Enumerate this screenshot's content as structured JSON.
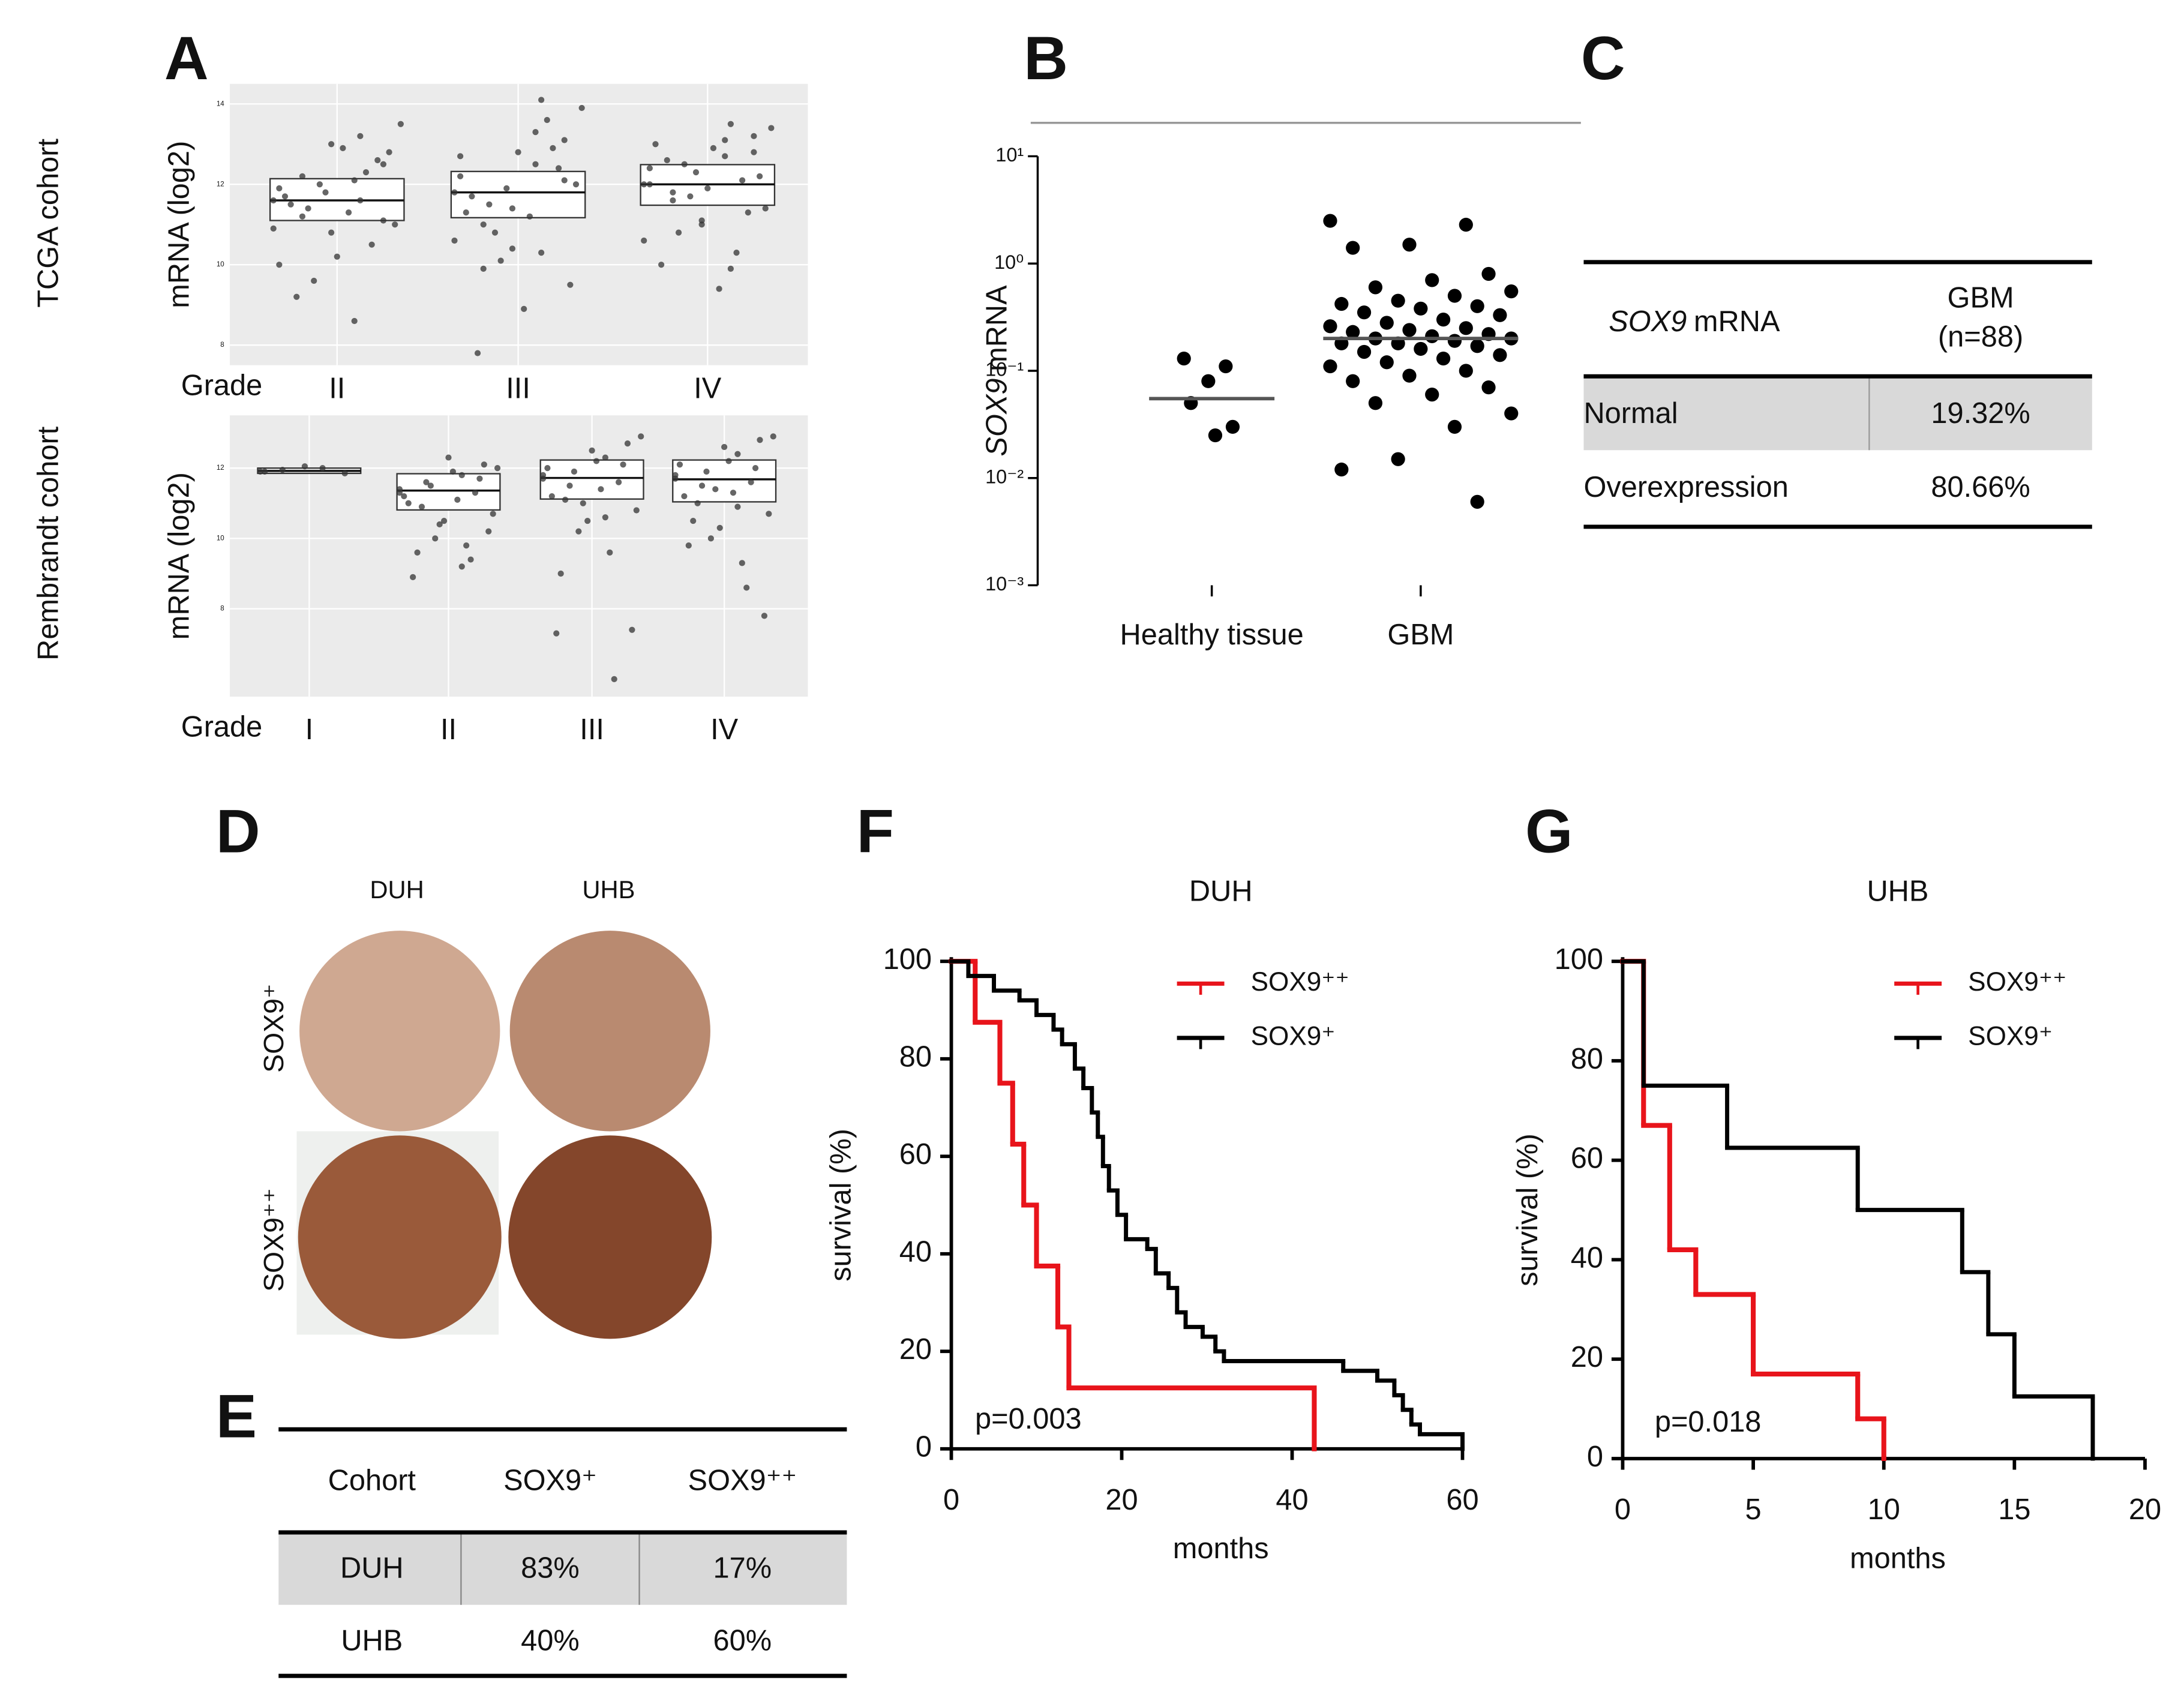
{
  "panel_labels": [
    "A",
    "B",
    "C",
    "D",
    "E",
    "F",
    "G"
  ],
  "chart_data": [
    {
      "type": "box",
      "side_label": "TCGA cohort",
      "y_label": "mRNA (log2)",
      "x_label": "Grade",
      "categories": [
        "II",
        "III",
        "IV"
      ],
      "ylim": [
        7.5,
        14.5
      ],
      "yticks": [
        8,
        10,
        12,
        14
      ],
      "point_color": "#333333",
      "boxes": [
        {
          "q1": 11.1,
          "median": 11.6,
          "q3": 12.14
        },
        {
          "q1": 11.17,
          "median": 11.8,
          "q3": 12.32
        },
        {
          "q1": 11.48,
          "median": 12.0,
          "q3": 12.49
        }
      ],
      "points": [
        [
          11.6,
          12.1,
          11.2,
          12.5,
          10.8,
          11.9,
          13.2,
          11.4,
          12.8,
          10.2,
          11.7,
          12.3,
          9.6,
          11.0,
          12.9,
          11.5,
          10.5,
          12.0,
          13.5,
          11.3,
          9.2,
          12.6,
          11.8,
          10.9,
          8.6,
          12.2,
          11.1,
          13.0,
          10.0,
          11.6
        ],
        [
          11.8,
          12.5,
          11.0,
          13.1,
          10.4,
          12.2,
          14.1,
          11.5,
          9.5,
          12.8,
          11.3,
          13.6,
          10.8,
          12.0,
          8.9,
          11.7,
          12.9,
          10.1,
          13.9,
          11.2,
          7.8,
          12.4,
          11.9,
          10.6,
          13.3,
          9.9,
          12.1,
          11.4,
          12.7,
          10.3
        ],
        [
          12.0,
          12.7,
          11.6,
          13.2,
          11.1,
          12.4,
          13.5,
          10.8,
          12.2,
          11.9,
          13.0,
          10.3,
          12.5,
          11.4,
          12.9,
          10.0,
          12.1,
          11.7,
          13.4,
          9.4,
          12.6,
          11.3,
          12.3,
          10.6,
          13.1,
          11.8,
          12.8,
          11.0,
          12.0,
          9.9
        ]
      ]
    },
    {
      "type": "box",
      "side_label": "Rembrandt cohort",
      "y_label": "mRNA (log2)",
      "x_label": "Grade",
      "categories": [
        "I",
        "II",
        "III",
        "IV"
      ],
      "ylim": [
        5.5,
        13.5
      ],
      "yticks": [
        8,
        10,
        12
      ],
      "point_color": "#333333",
      "boxes": [
        {
          "q1": 11.85,
          "median": 11.92,
          "q3": 12.0
        },
        {
          "q1": 10.81,
          "median": 11.36,
          "q3": 11.84
        },
        {
          "q1": 11.12,
          "median": 11.72,
          "q3": 12.23
        },
        {
          "q1": 11.04,
          "median": 11.68,
          "q3": 12.23
        }
      ],
      "points": [
        [
          11.9,
          12.0,
          11.95,
          11.85,
          12.05,
          11.9
        ],
        [
          11.4,
          11.8,
          10.9,
          12.1,
          10.5,
          11.2,
          9.8,
          11.6,
          10.2,
          12.3,
          11.0,
          9.4,
          11.5,
          10.7,
          11.9,
          8.9,
          11.3,
          10.0,
          12.0,
          11.1,
          9.6,
          11.7,
          10.4,
          11.3,
          9.2
        ],
        [
          11.7,
          12.3,
          11.1,
          12.7,
          10.5,
          12.0,
          9.6,
          11.5,
          7.4,
          12.5,
          11.2,
          6.0,
          11.9,
          10.8,
          12.2,
          7.3,
          11.6,
          10.2,
          12.9,
          11.4,
          9.0,
          12.1,
          11.0,
          11.8,
          10.6
        ],
        [
          11.7,
          12.4,
          11.0,
          12.8,
          10.3,
          12.1,
          9.3,
          11.5,
          7.8,
          12.6,
          11.2,
          8.6,
          11.9,
          10.7,
          12.2,
          9.8,
          11.6,
          10.0,
          12.9,
          11.3,
          10.5,
          12.0,
          11.4,
          11.8,
          10.9
        ]
      ]
    },
    {
      "type": "dot",
      "y_label": {
        "gene": "SOX9",
        "text": "mRNA"
      },
      "categories": [
        "Healthy tissue",
        "GBM"
      ],
      "log_y": true,
      "ylim": [
        0.001,
        10
      ],
      "yticks": [
        {
          "value": 10,
          "label": "10¹"
        },
        {
          "value": 1,
          "label": "10⁰"
        },
        {
          "value": 0.1,
          "label": "10⁻¹"
        },
        {
          "value": 0.01,
          "label": "10⁻²"
        },
        {
          "value": 0.001,
          "label": "10⁻³"
        }
      ],
      "point_color": "#000000",
      "means": [
        0.055,
        0.2
      ],
      "points": [
        [
          0.13,
          0.11,
          0.08,
          0.05,
          0.03,
          0.025
        ],
        [
          2.5,
          2.3,
          1.5,
          1.4,
          0.8,
          0.7,
          0.6,
          0.55,
          0.5,
          0.45,
          0.42,
          0.4,
          0.38,
          0.35,
          0.33,
          0.3,
          0.28,
          0.26,
          0.25,
          0.24,
          0.23,
          0.22,
          0.21,
          0.2,
          0.2,
          0.19,
          0.18,
          0.18,
          0.17,
          0.16,
          0.15,
          0.14,
          0.13,
          0.12,
          0.11,
          0.1,
          0.09,
          0.08,
          0.07,
          0.06,
          0.05,
          0.04,
          0.03,
          0.015,
          0.012,
          0.006
        ]
      ]
    },
    {
      "type": "step",
      "title": "DUH",
      "x_label": "months",
      "y_label": "survival (%)",
      "annotation": "p=0.003",
      "xlim": [
        0,
        60
      ],
      "xticks": [
        0,
        20,
        40,
        60
      ],
      "ylim": [
        0,
        100
      ],
      "yticks": [
        0,
        20,
        40,
        60,
        80,
        100
      ],
      "series": [
        {
          "name": "SOX9⁺⁺",
          "color": "#e8141b",
          "x": [
            0,
            2.8,
            5.7,
            7.2,
            8.5,
            10,
            12.5,
            13.8,
            42.6
          ],
          "values": [
            100,
            87.5,
            75,
            62.5,
            50,
            37.5,
            25,
            12.5,
            0
          ]
        },
        {
          "name": "SOX9⁺",
          "color": "#000000",
          "x": [
            0,
            2,
            5,
            8,
            10,
            12,
            13,
            14.5,
            15.5,
            16.5,
            17.2,
            17.8,
            18.5,
            19.5,
            20.5,
            23,
            24,
            25.5,
            26.5,
            27.5,
            29.5,
            31,
            32,
            46,
            50,
            52,
            53,
            54,
            55,
            60
          ],
          "values": [
            100,
            97,
            94,
            92,
            89,
            86,
            83,
            78,
            74,
            69,
            64,
            58,
            53,
            48,
            43,
            41,
            36,
            33,
            28,
            25,
            23,
            20,
            18,
            16,
            14,
            11,
            8,
            5,
            3,
            0
          ]
        }
      ]
    },
    {
      "type": "step",
      "title": "UHB",
      "x_label": "months",
      "y_label": "survival (%)",
      "annotation": "p=0.018",
      "xlim": [
        0,
        20
      ],
      "xticks": [
        0,
        5,
        10,
        15,
        20
      ],
      "ylim": [
        0,
        100
      ],
      "yticks": [
        0,
        20,
        40,
        60,
        80,
        100
      ],
      "series": [
        {
          "name": "SOX9⁺⁺",
          "color": "#e8141b",
          "x": [
            0,
            0.8,
            1.8,
            2.8,
            5,
            9,
            10
          ],
          "values": [
            100,
            67,
            42,
            33,
            17,
            8,
            0
          ]
        },
        {
          "name": "SOX9⁺",
          "color": "#000000",
          "x": [
            0,
            0.8,
            4,
            9,
            13,
            14,
            15,
            18
          ],
          "values": [
            100,
            75,
            62.5,
            50,
            37.5,
            25,
            12.5,
            0
          ]
        }
      ]
    }
  ],
  "table_c": {
    "header": {
      "gene": "SOX9",
      "label": "mRNA",
      "group": "GBM",
      "n": "(n=88)"
    },
    "rows": [
      [
        "Normal",
        "19.32%"
      ],
      [
        "Overexpression",
        "80.66%"
      ]
    ]
  },
  "panel_d": {
    "columns": [
      "DUH",
      "UHB"
    ],
    "rows": [
      "SOX9⁺",
      "SOX9⁺⁺"
    ]
  },
  "table_e": {
    "header": [
      "Cohort",
      "SOX9⁺",
      "SOX9⁺⁺"
    ],
    "rows": [
      [
        "DUH",
        "83%",
        "17%"
      ],
      [
        "UHB",
        "40%",
        "60%"
      ]
    ]
  }
}
